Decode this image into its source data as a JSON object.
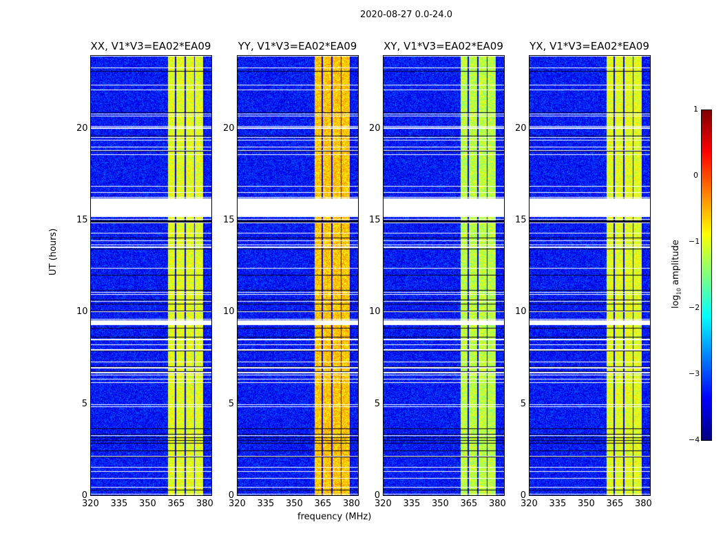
{
  "chart_data": {
    "type": "heatmap",
    "title": "2020-08-27 0.0-24.0",
    "xlabel": "frequency (MHz)",
    "ylabel": "UT (hours)",
    "xlim": [
      320,
      384
    ],
    "ylim": [
      0,
      24
    ],
    "xticks": [
      "320",
      "335",
      "350",
      "365",
      "380"
    ],
    "yticks": [
      "0",
      "5",
      "10",
      "15",
      "20"
    ],
    "panels": [
      {
        "title": "XX, V1*V3=EA02*EA09",
        "band_level": -1.0
      },
      {
        "title": "YY, V1*V3=EA02*EA09",
        "band_level": -0.6
      },
      {
        "title": "XY, V1*V3=EA02*EA09",
        "band_level": -1.2
      },
      {
        "title": "YX, V1*V3=EA02*EA09",
        "band_level": -1.0
      }
    ],
    "colorbar": {
      "label_main": "log",
      "label_sub": "10",
      "label_tail": " amplitude",
      "range": [
        -4,
        1
      ],
      "ticks": [
        "1",
        "0",
        "−1",
        "−2",
        "−3",
        "−4"
      ],
      "colormap": "jet"
    },
    "flagged_hours": [
      [
        15.2,
        16.2
      ],
      [
        9.3,
        9.55
      ]
    ]
  }
}
